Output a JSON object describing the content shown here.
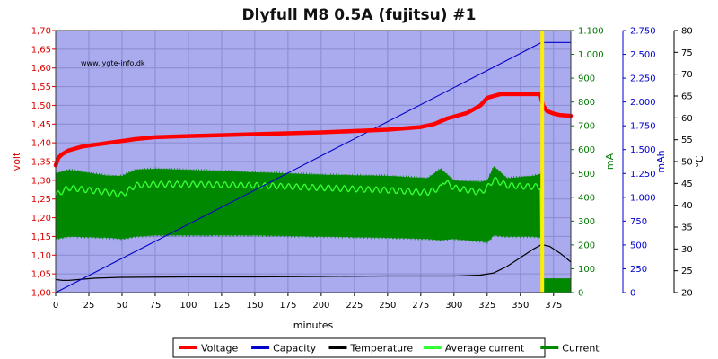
{
  "chart_data": {
    "type": "line",
    "title": "Dlyfull M8 0.5A (fujitsu) #1",
    "credit": "www.lygte-info.dk",
    "xlabel": "minutes",
    "x_ticks": [
      0,
      25,
      50,
      75,
      100,
      125,
      150,
      175,
      200,
      225,
      250,
      275,
      300,
      325,
      350,
      375
    ],
    "xlim": [
      0,
      388
    ],
    "background_color": "#aaaaee",
    "grid": true,
    "legend_position": "bottom",
    "axes": [
      {
        "name": "volt",
        "label": "volt",
        "side": "left",
        "color": "#dd0000",
        "min": 1.0,
        "max": 1.7,
        "ticks": [
          1.0,
          1.05,
          1.1,
          1.15,
          1.2,
          1.25,
          1.3,
          1.35,
          1.4,
          1.45,
          1.5,
          1.55,
          1.6,
          1.65,
          1.7
        ],
        "tick_labels": [
          "1,00",
          "1,05",
          "1,10",
          "1,15",
          "1,20",
          "1,25",
          "1,30",
          "1,35",
          "1,40",
          "1,45",
          "1,50",
          "1,55",
          "1,60",
          "1,65",
          "1,70"
        ]
      },
      {
        "name": "ma",
        "label": "mA",
        "side": "right",
        "color": "#007700",
        "min": 0,
        "max": 1100,
        "ticks": [
          0,
          100,
          200,
          300,
          400,
          500,
          600,
          700,
          800,
          900,
          1000,
          1100
        ],
        "tick_labels": [
          "0",
          "100",
          "200",
          "300",
          "400",
          "500",
          "600",
          "700",
          "800",
          "900",
          "1.000",
          "1.100"
        ]
      },
      {
        "name": "mah",
        "label": "mAh",
        "side": "right",
        "color": "#0000cc",
        "min": 0,
        "max": 2750,
        "ticks": [
          0,
          250,
          500,
          750,
          1000,
          1250,
          1500,
          1750,
          2000,
          2250,
          2500,
          2750
        ],
        "tick_labels": [
          "0",
          "250",
          "500",
          "750",
          "1.000",
          "1.250",
          "1.500",
          "1.750",
          "2.000",
          "2.250",
          "2.500",
          "2.750"
        ]
      },
      {
        "name": "temp",
        "label": "°C",
        "side": "right",
        "color": "#000000",
        "min": 20,
        "max": 80,
        "ticks": [
          20,
          25,
          30,
          35,
          40,
          45,
          50,
          55,
          60,
          65,
          70,
          75,
          80
        ],
        "tick_labels": [
          "20",
          "25",
          "30",
          "35",
          "40",
          "45",
          "50",
          "55",
          "60",
          "65",
          "70",
          "75",
          "80"
        ]
      }
    ],
    "series": [
      {
        "name": "Voltage",
        "axis": "volt",
        "color": "#ff0000",
        "x": [
          0,
          2,
          5,
          10,
          20,
          30,
          40,
          50,
          60,
          75,
          100,
          150,
          200,
          250,
          275,
          285,
          295,
          310,
          320,
          325,
          335,
          350,
          365,
          367,
          370,
          375,
          380,
          388
        ],
        "y": [
          1.34,
          1.36,
          1.37,
          1.38,
          1.39,
          1.395,
          1.4,
          1.405,
          1.41,
          1.415,
          1.418,
          1.423,
          1.428,
          1.435,
          1.442,
          1.45,
          1.465,
          1.48,
          1.5,
          1.52,
          1.53,
          1.53,
          1.53,
          1.5,
          1.485,
          1.478,
          1.474,
          1.472
        ]
      },
      {
        "name": "Capacity",
        "axis": "mah",
        "color": "#0000cc",
        "x": [
          0,
          366,
          388
        ],
        "y": [
          0,
          2625,
          2625
        ]
      },
      {
        "name": "Temperature",
        "axis": "temp",
        "color": "#000000",
        "x": [
          0,
          5,
          10,
          30,
          50,
          100,
          150,
          200,
          250,
          300,
          320,
          330,
          340,
          350,
          360,
          366,
          372,
          380,
          388
        ],
        "y": [
          23,
          22.8,
          22.8,
          23.3,
          23.5,
          23.6,
          23.6,
          23.7,
          23.8,
          23.8,
          24,
          24.5,
          26,
          28,
          30,
          31,
          30.6,
          29,
          27
        ]
      },
      {
        "name": "Average current",
        "axis": "ma",
        "color": "#33ff33",
        "x": [
          0,
          10,
          25,
          40,
          50,
          60,
          75,
          100,
          150,
          200,
          250,
          280,
          290,
          292,
          300,
          320,
          325,
          330,
          340,
          355,
          365,
          366,
          368,
          388
        ],
        "y": [
          410,
          440,
          430,
          420,
          410,
          450,
          455,
          455,
          450,
          440,
          430,
          420,
          440,
          470,
          440,
          420,
          440,
          475,
          450,
          445,
          445,
          0,
          0,
          0
        ]
      },
      {
        "name": "Current",
        "axis": "ma",
        "color": "#008800",
        "x": [
          0,
          10,
          40,
          50,
          60,
          75,
          100,
          150,
          200,
          250,
          280,
          290,
          300,
          320,
          325,
          330,
          340,
          360,
          366,
          367,
          388
        ],
        "upper": [
          500,
          515,
          490,
          490,
          515,
          520,
          515,
          505,
          495,
          490,
          480,
          520,
          470,
          465,
          470,
          530,
          480,
          490,
          500,
          60,
          60
        ],
        "lower": [
          225,
          235,
          230,
          225,
          235,
          240,
          240,
          240,
          235,
          230,
          225,
          220,
          225,
          215,
          210,
          240,
          235,
          235,
          230,
          0,
          0
        ]
      }
    ],
    "markers": [
      {
        "label": "end marker",
        "x": 366.5,
        "color": "#ffee00"
      }
    ]
  },
  "legend": [
    {
      "name": "Voltage",
      "color": "#ff0000"
    },
    {
      "name": "Capacity",
      "color": "#0000cc"
    },
    {
      "name": "Temperature",
      "color": "#000000"
    },
    {
      "name": "Average current",
      "color": "#33ff33"
    },
    {
      "name": "Current",
      "color": "#008800"
    }
  ]
}
